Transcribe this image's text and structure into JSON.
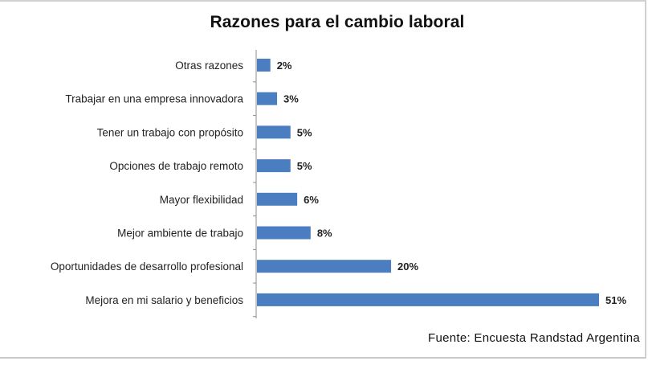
{
  "chart_data": {
    "type": "bar",
    "orientation": "horizontal",
    "title": "Razones para el cambio laboral",
    "categories": [
      "Otras razones",
      "Trabajar en una empresa innovadora",
      "Tener un trabajo con propósito",
      "Opciones de trabajo remoto",
      "Mayor flexibilidad",
      "Mejor ambiente de trabajo",
      "Oportunidades de desarrollo profesional",
      "Mejora en mi salario y beneficios"
    ],
    "values": [
      2,
      3,
      5,
      5,
      6,
      8,
      20,
      51
    ],
    "value_labels": [
      "2%",
      "3%",
      "5%",
      "5%",
      "6%",
      "8%",
      "20%",
      "51%"
    ],
    "unit": "%",
    "xlim": [
      0,
      51
    ],
    "grid": false,
    "bar_color": "#4a7ec1"
  },
  "source": "Fuente:  Encuesta Randstad Argentina"
}
